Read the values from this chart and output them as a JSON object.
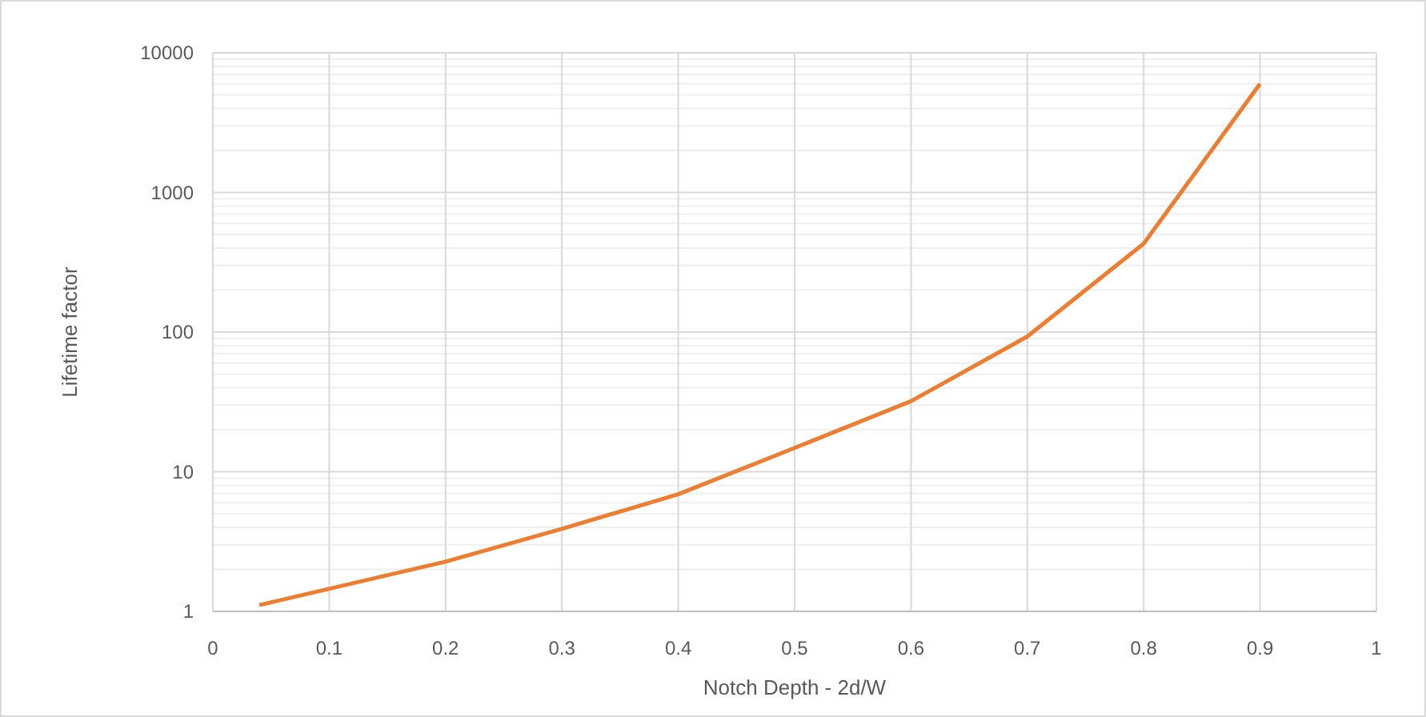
{
  "chart_data": {
    "type": "line",
    "xlabel": "Notch Depth - 2d/W",
    "ylabel": "Lifetime factor",
    "x": [
      0.04,
      0.2,
      0.3,
      0.4,
      0.5,
      0.6,
      0.7,
      0.8,
      0.9
    ],
    "series": [
      {
        "color": "#ed7d31",
        "values": [
          1.11,
          2.27,
          3.9,
          6.9,
          14.8,
          32,
          93,
          430,
          6000
        ]
      }
    ],
    "xlim": [
      0,
      1
    ],
    "xticks": [
      0,
      0.1,
      0.2,
      0.3,
      0.4,
      0.5,
      0.6,
      0.7,
      0.8,
      0.9,
      1
    ],
    "ylim": [
      1,
      10000
    ],
    "yticks": [
      1,
      10,
      100,
      1000,
      10000
    ],
    "log": "y",
    "grid": true,
    "marker": "none",
    "line_style": "solid"
  }
}
